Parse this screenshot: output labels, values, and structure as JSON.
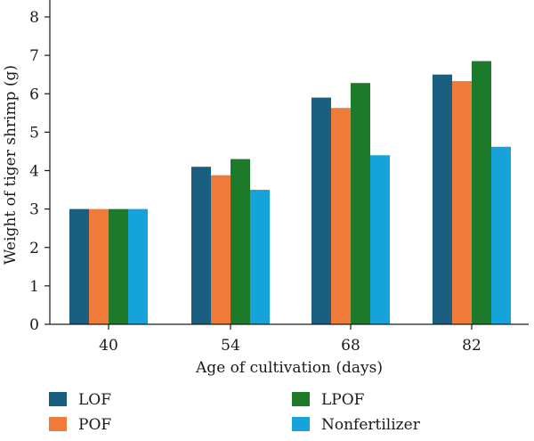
{
  "chart_data": {
    "type": "bar",
    "title": "",
    "xlabel": "Age of cultivation (days)",
    "ylabel": "Weight of tiger shrimp (g)",
    "categories": [
      "40",
      "54",
      "68",
      "82"
    ],
    "ylim": [
      0,
      8
    ],
    "yticks": [
      "0",
      "1",
      "2",
      "3",
      "4",
      "5",
      "6",
      "7",
      "8"
    ],
    "grid": false,
    "legend_position": "bottom",
    "series": [
      {
        "name": "LOF",
        "color": "#1b5f80",
        "values": [
          3.0,
          4.1,
          5.9,
          6.5
        ]
      },
      {
        "name": "POF",
        "color": "#f07a3a",
        "values": [
          3.0,
          3.88,
          5.63,
          6.33
        ]
      },
      {
        "name": "LPOF",
        "color": "#1e7a2b",
        "values": [
          3.0,
          4.3,
          6.28,
          6.85
        ]
      },
      {
        "name": "Nonfertilizer",
        "color": "#16a3d9",
        "values": [
          3.0,
          3.5,
          4.4,
          4.62
        ]
      }
    ]
  }
}
